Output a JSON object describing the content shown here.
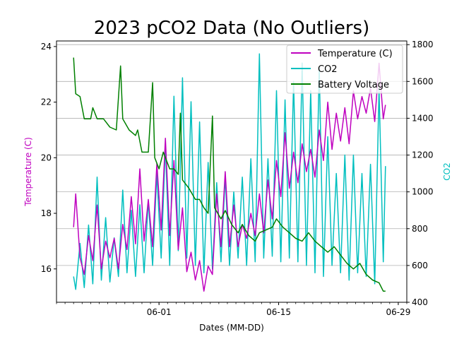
{
  "chart_data": {
    "type": "line",
    "title": "2023 pCO2 Data (No Outliers)",
    "xlabel": "Dates (MM-DD)",
    "ylabel_left": "Temperature (C)",
    "ylabel_right": "CO2",
    "x_ticks": [
      "06-01",
      "06-15",
      "06-29"
    ],
    "xlim": [
      "2023-05-20",
      "2023-06-30"
    ],
    "ylim_left": [
      14.8,
      24.2
    ],
    "ylim_right": [
      400,
      1820
    ],
    "y_ticks_left": [
      16,
      18,
      20,
      22,
      24
    ],
    "y_ticks_right": [
      400,
      600,
      800,
      1000,
      1200,
      1400,
      1600,
      1800
    ],
    "grid": "horizontal (right axis)",
    "legend_position": "top-right",
    "colors": {
      "temperature": "#bf00bf",
      "co2": "#00bfbf",
      "battery": "#008000",
      "grid": "#b0b0b0"
    },
    "series": [
      {
        "name": "Temperature (C)",
        "axis": "left",
        "color": "#bf00bf",
        "points": [
          [
            "05-22 00:00",
            17.5
          ],
          [
            "05-22 06:00",
            18.7
          ],
          [
            "05-22 18:00",
            16.4
          ],
          [
            "05-23 06:00",
            15.8
          ],
          [
            "05-23 18:00",
            17.2
          ],
          [
            "05-24 06:00",
            16.3
          ],
          [
            "05-24 18:00",
            18.3
          ],
          [
            "05-25 06:00",
            16.0
          ],
          [
            "05-25 18:00",
            17.0
          ],
          [
            "05-26 06:00",
            16.4
          ],
          [
            "05-26 18:00",
            17.1
          ],
          [
            "05-27 06:00",
            16.0
          ],
          [
            "05-27 18:00",
            17.6
          ],
          [
            "05-28 06:00",
            16.7
          ],
          [
            "05-28 18:00",
            18.6
          ],
          [
            "05-29 06:00",
            16.9
          ],
          [
            "05-29 18:00",
            19.6
          ],
          [
            "05-30 06:00",
            17.0
          ],
          [
            "05-30 18:00",
            18.5
          ],
          [
            "05-31 06:00",
            16.8
          ],
          [
            "05-31 18:00",
            19.8
          ],
          [
            "06-01 06:00",
            17.4
          ],
          [
            "06-01 18:00",
            20.7
          ],
          [
            "06-02 06:00",
            17.2
          ],
          [
            "06-02 18:00",
            19.9
          ],
          [
            "06-03 06:00",
            16.7
          ],
          [
            "06-03 18:00",
            18.2
          ],
          [
            "06-04 06:00",
            15.9
          ],
          [
            "06-04 18:00",
            16.6
          ],
          [
            "06-05 06:00",
            15.6
          ],
          [
            "06-05 18:00",
            16.3
          ],
          [
            "06-06 06:00",
            15.2
          ],
          [
            "06-06 18:00",
            16.1
          ],
          [
            "06-07 06:00",
            15.8
          ],
          [
            "06-07 18:00",
            18.7
          ],
          [
            "06-08 06:00",
            16.8
          ],
          [
            "06-08 18:00",
            19.5
          ],
          [
            "06-09 06:00",
            16.8
          ],
          [
            "06-09 18:00",
            18.3
          ],
          [
            "06-10 06:00",
            16.8
          ],
          [
            "06-10 18:00",
            17.6
          ],
          [
            "06-11 06:00",
            17.1
          ],
          [
            "06-11 18:00",
            18.0
          ],
          [
            "06-12 06:00",
            17.2
          ],
          [
            "06-12 18:00",
            18.7
          ],
          [
            "06-13 06:00",
            17.3
          ],
          [
            "06-13 18:00",
            19.2
          ],
          [
            "06-14 06:00",
            17.8
          ],
          [
            "06-14 18:00",
            19.9
          ],
          [
            "06-15 06:00",
            18.6
          ],
          [
            "06-15 18:00",
            20.9
          ],
          [
            "06-16 06:00",
            18.9
          ],
          [
            "06-16 18:00",
            20.2
          ],
          [
            "06-17 06:00",
            19.1
          ],
          [
            "06-17 18:00",
            20.5
          ],
          [
            "06-18 06:00",
            19.5
          ],
          [
            "06-18 18:00",
            20.3
          ],
          [
            "06-19 06:00",
            19.3
          ],
          [
            "06-19 18:00",
            21.0
          ],
          [
            "06-20 06:00",
            19.9
          ],
          [
            "06-20 18:00",
            22.0
          ],
          [
            "06-21 06:00",
            20.3
          ],
          [
            "06-21 18:00",
            21.6
          ],
          [
            "06-22 06:00",
            20.6
          ],
          [
            "06-22 18:00",
            21.8
          ],
          [
            "06-23 06:00",
            20.5
          ],
          [
            "06-23 18:00",
            22.4
          ],
          [
            "06-24 06:00",
            21.4
          ],
          [
            "06-24 18:00",
            22.2
          ],
          [
            "06-25 06:00",
            21.6
          ],
          [
            "06-25 18:00",
            22.5
          ],
          [
            "06-26 06:00",
            21.3
          ],
          [
            "06-26 18:00",
            23.4
          ],
          [
            "06-27 06:00",
            21.4
          ],
          [
            "06-27 12:00",
            21.9
          ]
        ]
      },
      {
        "name": "CO2",
        "axis": "right",
        "color": "#00bfbf",
        "points": [
          [
            "05-22 00:00",
            540
          ],
          [
            "05-22 06:00",
            470
          ],
          [
            "05-22 18:00",
            720
          ],
          [
            "05-23 06:00",
            480
          ],
          [
            "05-23 18:00",
            820
          ],
          [
            "05-24 06:00",
            500
          ],
          [
            "05-24 18:00",
            1080
          ],
          [
            "05-25 06:00",
            520
          ],
          [
            "05-25 18:00",
            860
          ],
          [
            "05-26 06:00",
            510
          ],
          [
            "05-26 18:00",
            750
          ],
          [
            "05-27 06:00",
            540
          ],
          [
            "05-27 18:00",
            1010
          ],
          [
            "05-28 06:00",
            560
          ],
          [
            "05-28 18:00",
            900
          ],
          [
            "05-29 06:00",
            540
          ],
          [
            "05-29 18:00",
            930
          ],
          [
            "05-30 06:00",
            560
          ],
          [
            "05-30 18:00",
            950
          ],
          [
            "05-31 06:00",
            600
          ],
          [
            "05-31 18:00",
            1100
          ],
          [
            "06-01 06:00",
            640
          ],
          [
            "06-01 18:00",
            1250
          ],
          [
            "06-02 06:00",
            600
          ],
          [
            "06-02 18:00",
            1520
          ],
          [
            "06-03 06:00",
            680
          ],
          [
            "06-03 18:00",
            1620
          ],
          [
            "06-04 06:00",
            640
          ],
          [
            "06-04 18:00",
            1490
          ],
          [
            "06-05 06:00",
            600
          ],
          [
            "06-05 18:00",
            1380
          ],
          [
            "06-06 06:00",
            560
          ],
          [
            "06-06 18:00",
            1160
          ],
          [
            "06-07 06:00",
            580
          ],
          [
            "06-07 18:00",
            1050
          ],
          [
            "06-08 06:00",
            620
          ],
          [
            "06-08 18:00",
            1080
          ],
          [
            "06-09 06:00",
            600
          ],
          [
            "06-09 18:00",
            1000
          ],
          [
            "06-10 06:00",
            640
          ],
          [
            "06-10 18:00",
            1080
          ],
          [
            "06-11 06:00",
            600
          ],
          [
            "06-11 18:00",
            1180
          ],
          [
            "06-12 06:00",
            620
          ],
          [
            "06-12 18:00",
            1750
          ],
          [
            "06-13 06:00",
            640
          ],
          [
            "06-13 18:00",
            1180
          ],
          [
            "06-14 06:00",
            650
          ],
          [
            "06-14 18:00",
            1550
          ],
          [
            "06-15 06:00",
            620
          ],
          [
            "06-15 18:00",
            1500
          ],
          [
            "06-16 06:00",
            640
          ],
          [
            "06-16 18:00",
            1600
          ],
          [
            "06-17 06:00",
            620
          ],
          [
            "06-17 18:00",
            1700
          ],
          [
            "06-18 06:00",
            600
          ],
          [
            "06-18 18:00",
            1550
          ],
          [
            "06-19 06:00",
            560
          ],
          [
            "06-19 18:00",
            1680
          ],
          [
            "06-20 06:00",
            540
          ],
          [
            "06-20 18:00",
            1300
          ],
          [
            "06-21 06:00",
            600
          ],
          [
            "06-21 18:00",
            1100
          ],
          [
            "06-22 06:00",
            560
          ],
          [
            "06-22 18:00",
            1200
          ],
          [
            "06-23 06:00",
            520
          ],
          [
            "06-23 18:00",
            1200
          ],
          [
            "06-24 06:00",
            560
          ],
          [
            "06-24 18:00",
            1100
          ],
          [
            "06-25 06:00",
            540
          ],
          [
            "06-25 18:00",
            1150
          ],
          [
            "06-26 06:00",
            500
          ],
          [
            "06-26 18:00",
            1560
          ],
          [
            "06-27 06:00",
            620
          ],
          [
            "06-27 12:00",
            1140
          ]
        ]
      },
      {
        "name": "Battery Voltage",
        "axis": "left",
        "color": "#008000",
        "points": [
          [
            "05-22 00:00",
            23.6
          ],
          [
            "05-22 06:00",
            22.3
          ],
          [
            "05-22 18:00",
            22.2
          ],
          [
            "05-23 06:00",
            21.4
          ],
          [
            "05-24 00:00",
            21.4
          ],
          [
            "05-24 06:00",
            21.8
          ],
          [
            "05-24 18:00",
            21.4
          ],
          [
            "05-25 12:00",
            21.4
          ],
          [
            "05-26 06:00",
            21.1
          ],
          [
            "05-27 00:00",
            21.0
          ],
          [
            "05-27 12:00",
            23.3
          ],
          [
            "05-27 18:00",
            21.4
          ],
          [
            "05-28 12:00",
            21.0
          ],
          [
            "05-29 06:00",
            20.8
          ],
          [
            "05-29 12:00",
            21.0
          ],
          [
            "05-30 00:00",
            20.2
          ],
          [
            "05-30 18:00",
            20.2
          ],
          [
            "05-31 06:00",
            22.7
          ],
          [
            "05-31 12:00",
            20.0
          ],
          [
            "06-01 00:00",
            19.6
          ],
          [
            "06-01 12:00",
            20.2
          ],
          [
            "06-02 06:00",
            19.6
          ],
          [
            "06-02 18:00",
            19.6
          ],
          [
            "06-03 06:00",
            19.4
          ],
          [
            "06-03 12:00",
            21.6
          ],
          [
            "06-03 18:00",
            19.2
          ],
          [
            "06-04 12:00",
            18.9
          ],
          [
            "06-05 06:00",
            18.5
          ],
          [
            "06-05 18:00",
            18.5
          ],
          [
            "06-06 06:00",
            18.2
          ],
          [
            "06-06 18:00",
            18.0
          ],
          [
            "06-07 06:00",
            21.5
          ],
          [
            "06-07 12:00",
            18.2
          ],
          [
            "06-08 06:00",
            17.8
          ],
          [
            "06-08 18:00",
            18.1
          ],
          [
            "06-09 12:00",
            17.6
          ],
          [
            "06-10 06:00",
            17.3
          ],
          [
            "06-10 18:00",
            17.6
          ],
          [
            "06-11 12:00",
            17.2
          ],
          [
            "06-12 06:00",
            17.0
          ],
          [
            "06-12 18:00",
            17.3
          ],
          [
            "06-13 12:00",
            17.4
          ],
          [
            "06-14 06:00",
            17.5
          ],
          [
            "06-14 18:00",
            17.8
          ],
          [
            "06-15 12:00",
            17.5
          ],
          [
            "06-16 06:00",
            17.3
          ],
          [
            "06-17 00:00",
            17.1
          ],
          [
            "06-17 18:00",
            17.0
          ],
          [
            "06-18 12:00",
            17.3
          ],
          [
            "06-19 06:00",
            17.0
          ],
          [
            "06-20 00:00",
            16.8
          ],
          [
            "06-20 18:00",
            16.6
          ],
          [
            "06-21 12:00",
            16.8
          ],
          [
            "06-22 06:00",
            16.5
          ],
          [
            "06-23 00:00",
            16.2
          ],
          [
            "06-23 18:00",
            16.0
          ],
          [
            "06-24 12:00",
            16.2
          ],
          [
            "06-25 06:00",
            15.8
          ],
          [
            "06-26 00:00",
            15.6
          ],
          [
            "06-26 18:00",
            15.5
          ],
          [
            "06-27 06:00",
            15.2
          ],
          [
            "06-27 12:00",
            15.2
          ]
        ]
      }
    ]
  }
}
